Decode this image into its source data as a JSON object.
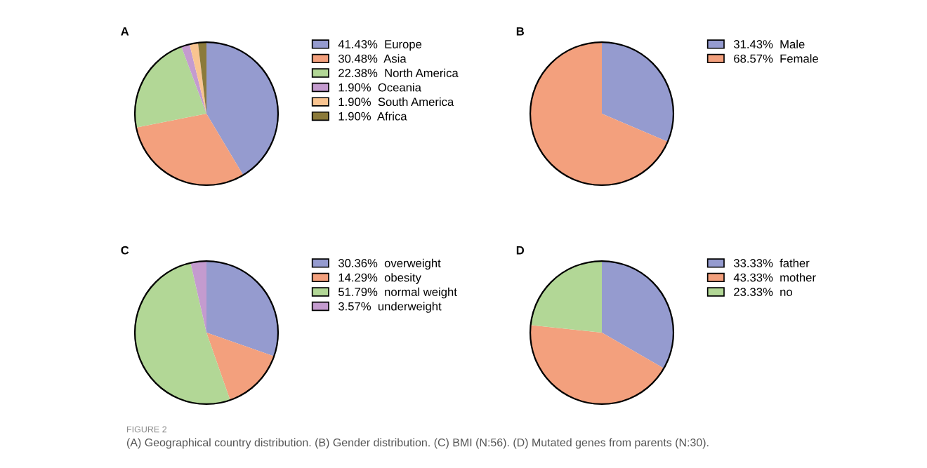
{
  "chart_data": [
    {
      "type": "pie",
      "title": "A",
      "categories": [
        "Europe",
        "Asia",
        "North America",
        "Oceania",
        "South America",
        "Africa"
      ],
      "values": [
        41.43,
        30.48,
        22.38,
        1.9,
        1.9,
        1.9
      ],
      "value_labels": [
        "41.43%",
        "30.48%",
        "22.38%",
        "1.90%",
        "1.90%",
        "1.90%"
      ],
      "colors": [
        "#959bcf",
        "#f3a07d",
        "#b2d796",
        "#c49bcf",
        "#f9c490",
        "#8b7a3a"
      ],
      "legend": "right",
      "annotations": [
        "FIGURE 2",
        "(A) Geographical country distribution. (B) Gender distribution. (C) BMI (N:56). (D) Mutated genes from parents (N:30)."
      ]
    },
    {
      "type": "pie",
      "title": "B",
      "categories": [
        "Male",
        "Female"
      ],
      "values": [
        31.43,
        68.57
      ],
      "value_labels": [
        "31.43%",
        "68.57%"
      ],
      "colors": [
        "#959bcf",
        "#f3a07d"
      ],
      "legend": "right"
    },
    {
      "type": "pie",
      "title": "C",
      "categories": [
        "overweight",
        "obesity",
        "normal weight",
        "underweight"
      ],
      "values": [
        30.36,
        14.29,
        51.79,
        3.57
      ],
      "value_labels": [
        "30.36%",
        "14.29%",
        "51.79%",
        "3.57%"
      ],
      "colors": [
        "#959bcf",
        "#f3a07d",
        "#b2d796",
        "#c49bcf"
      ],
      "legend": "right"
    },
    {
      "type": "pie",
      "title": "D",
      "categories": [
        "father",
        "mother",
        "no"
      ],
      "values": [
        33.33,
        43.33,
        23.33
      ],
      "value_labels": [
        "33.33%",
        "43.33%",
        "23.33%"
      ],
      "colors": [
        "#959bcf",
        "#f3a07d",
        "#b2d796"
      ],
      "legend": "right"
    }
  ]
}
